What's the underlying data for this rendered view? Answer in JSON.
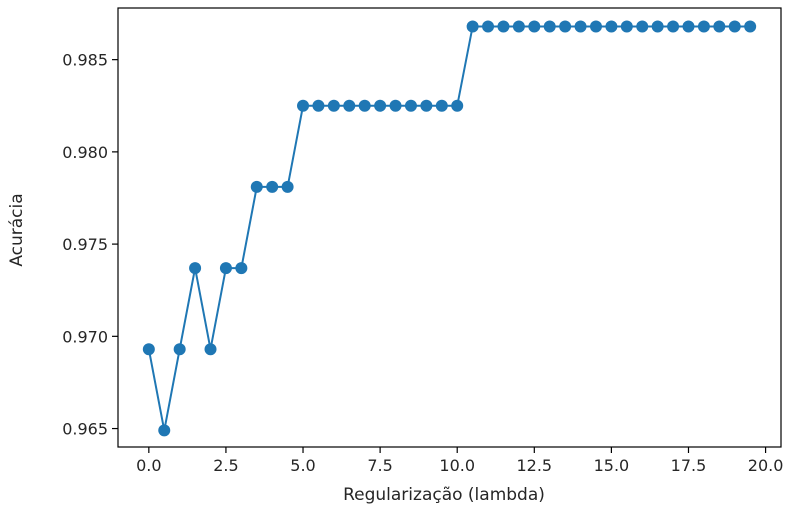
{
  "chart_data": {
    "type": "line",
    "title": "",
    "xlabel": "Regularização (lambda)",
    "ylabel": "Acurácia",
    "xlim": [
      -1.0,
      20.5
    ],
    "ylim": [
      0.964,
      0.9878
    ],
    "grid": false,
    "legend": "none",
    "marker": "circle",
    "x_ticks": [
      0.0,
      2.5,
      5.0,
      7.5,
      10.0,
      12.5,
      15.0,
      17.5,
      20.0
    ],
    "x_tick_labels": [
      "0.0",
      "2.5",
      "5.0",
      "7.5",
      "10.0",
      "12.5",
      "15.0",
      "17.5",
      "20.0"
    ],
    "y_ticks": [
      0.965,
      0.97,
      0.975,
      0.98,
      0.985
    ],
    "y_tick_labels": [
      "0.965",
      "0.970",
      "0.975",
      "0.980",
      "0.985"
    ],
    "colors": {
      "series": "#1f77b4",
      "axis": "#000000",
      "text": "#262626"
    },
    "series": [
      {
        "x": [
          0.0,
          0.5,
          1.0,
          1.5,
          2.0,
          2.5,
          3.0,
          3.5,
          4.0,
          4.5,
          5.0,
          5.5,
          6.0,
          6.5,
          7.0,
          7.5,
          8.0,
          8.5,
          9.0,
          9.5,
          10.0,
          10.5,
          11.0,
          11.5,
          12.0,
          12.5,
          13.0,
          13.5,
          14.0,
          14.5,
          15.0,
          15.5,
          16.0,
          16.5,
          17.0,
          17.5,
          18.0,
          18.5,
          19.0,
          19.5
        ],
        "y": [
          0.9693,
          0.9649,
          0.9693,
          0.9737,
          0.9693,
          0.9737,
          0.9737,
          0.9781,
          0.9781,
          0.9781,
          0.9825,
          0.9825,
          0.9825,
          0.9825,
          0.9825,
          0.9825,
          0.9825,
          0.9825,
          0.9825,
          0.9825,
          0.9825,
          0.9868,
          0.9868,
          0.9868,
          0.9868,
          0.9868,
          0.9868,
          0.9868,
          0.9868,
          0.9868,
          0.9868,
          0.9868,
          0.9868,
          0.9868,
          0.9868,
          0.9868,
          0.9868,
          0.9868,
          0.9868,
          0.9868
        ]
      }
    ]
  }
}
